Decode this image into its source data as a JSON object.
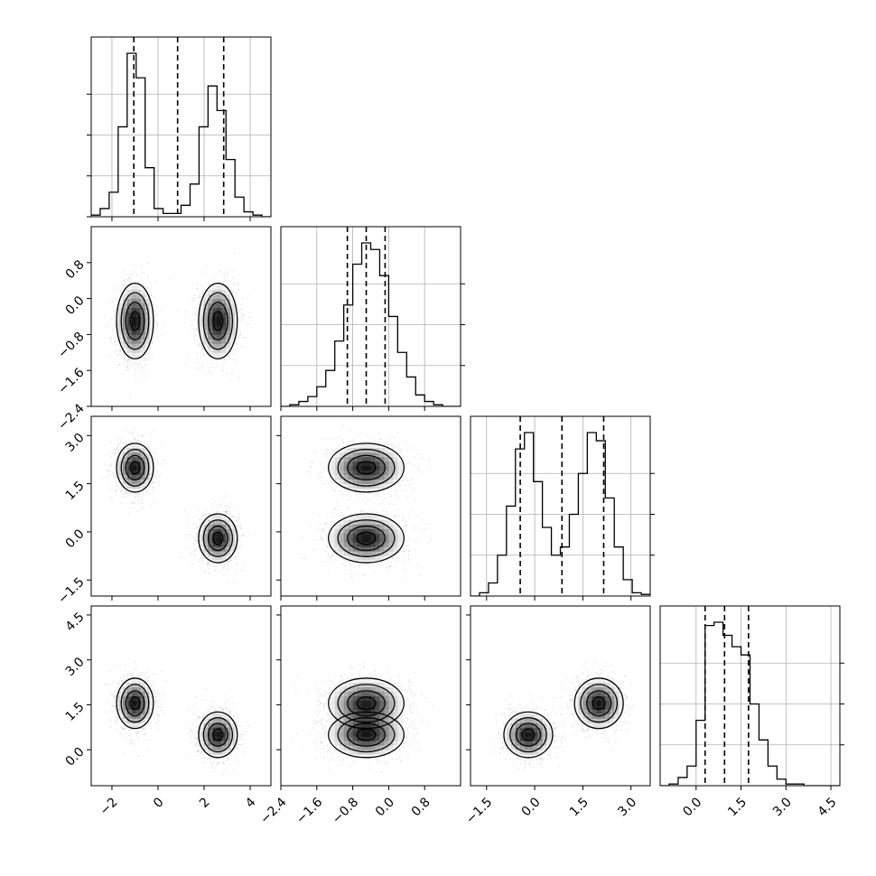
{
  "chart_data": {
    "type": "corner",
    "n_params": 4,
    "grid": true,
    "colors": {
      "hist_line": "#000000",
      "frame": "#000000",
      "grid": "#b0b0b0",
      "quantile_line": "#000000",
      "density_dark": "#000000",
      "density_light": "#ffffff"
    },
    "params": [
      {
        "index": 0,
        "range": [
          -2.9,
          4.9
        ],
        "ticks": [
          -2,
          0,
          2,
          4
        ],
        "tick_labels": [
          "−2",
          "0",
          "2",
          "4"
        ],
        "quantiles": [
          -1.05,
          0.85,
          2.85
        ],
        "hist": {
          "edges": [
            -2.9,
            -2.51,
            -2.12,
            -1.73,
            -1.34,
            -0.95,
            -0.56,
            -0.17,
            0.22,
            0.61,
            1.0,
            1.39,
            1.78,
            2.17,
            2.56,
            2.95,
            3.34,
            3.73,
            4.12,
            4.51,
            4.9
          ],
          "counts": [
            0.01,
            0.05,
            0.15,
            0.55,
            1.0,
            0.85,
            0.3,
            0.05,
            0.02,
            0.02,
            0.07,
            0.2,
            0.55,
            0.8,
            0.65,
            0.35,
            0.12,
            0.03,
            0.01,
            0.0
          ]
        }
      },
      {
        "index": 1,
        "range": [
          -2.4,
          1.6
        ],
        "ticks": [
          -2.4,
          -1.6,
          -0.8,
          0.0,
          0.8
        ],
        "tick_labels": [
          "−2.4",
          "−1.6",
          "−0.8",
          "0.0",
          "0.8"
        ],
        "quantiles": [
          -0.92,
          -0.5,
          -0.08
        ],
        "hist": {
          "edges": [
            -2.4,
            -2.2,
            -2.0,
            -1.8,
            -1.6,
            -1.4,
            -1.2,
            -1.0,
            -0.8,
            -0.6,
            -0.4,
            -0.2,
            0.0,
            0.2,
            0.4,
            0.6,
            0.8,
            1.0,
            1.2,
            1.4,
            1.6
          ],
          "counts": [
            0.0,
            0.01,
            0.03,
            0.06,
            0.12,
            0.22,
            0.4,
            0.62,
            0.87,
            1.0,
            0.96,
            0.8,
            0.55,
            0.33,
            0.18,
            0.07,
            0.03,
            0.01,
            0.0,
            0.0
          ]
        }
      },
      {
        "index": 2,
        "range": [
          -2.0,
          3.6
        ],
        "ticks": [
          -1.5,
          0.0,
          1.5,
          3.0
        ],
        "tick_labels": [
          "−1.5",
          "0.0",
          "1.5",
          "3.0"
        ],
        "quantiles": [
          -0.45,
          0.85,
          2.15
        ],
        "hist": {
          "edges": [
            -2.0,
            -1.72,
            -1.44,
            -1.16,
            -0.88,
            -0.6,
            -0.32,
            -0.04,
            0.24,
            0.52,
            0.8,
            1.08,
            1.36,
            1.64,
            1.92,
            2.2,
            2.48,
            2.76,
            3.04,
            3.32,
            3.6
          ],
          "counts": [
            0.0,
            0.02,
            0.08,
            0.25,
            0.55,
            0.9,
            1.0,
            0.7,
            0.42,
            0.25,
            0.3,
            0.5,
            0.75,
            1.0,
            0.95,
            0.6,
            0.3,
            0.1,
            0.02,
            0.01
          ]
        }
      },
      {
        "index": 3,
        "range": [
          -1.2,
          4.8
        ],
        "ticks": [
          0.0,
          1.5,
          3.0,
          4.5
        ],
        "tick_labels": [
          "0.0",
          "1.5",
          "3.0",
          "4.5"
        ],
        "quantiles": [
          0.3,
          0.95,
          1.75
        ],
        "hist": {
          "edges": [
            -1.2,
            -0.9,
            -0.6,
            -0.3,
            0.0,
            0.3,
            0.6,
            0.9,
            1.2,
            1.5,
            1.8,
            2.1,
            2.4,
            2.7,
            3.0,
            3.3,
            3.6,
            3.9,
            4.2,
            4.5,
            4.8
          ],
          "counts": [
            0.0,
            0.01,
            0.05,
            0.12,
            0.4,
            0.98,
            1.0,
            0.92,
            0.85,
            0.8,
            0.5,
            0.28,
            0.12,
            0.04,
            0.01,
            0.01,
            0.0,
            0.0,
            0.0,
            0.0
          ]
        }
      }
    ],
    "joint_modes": [
      {
        "weight": 0.5,
        "mean": [
          -1.0,
          -0.5,
          2.0,
          1.55
        ],
        "sd": [
          0.4,
          0.42,
          0.38,
          0.42
        ]
      },
      {
        "weight": 0.5,
        "mean": [
          2.6,
          -0.5,
          -0.2,
          0.5
        ],
        "sd": [
          0.42,
          0.42,
          0.38,
          0.38
        ]
      }
    ]
  }
}
